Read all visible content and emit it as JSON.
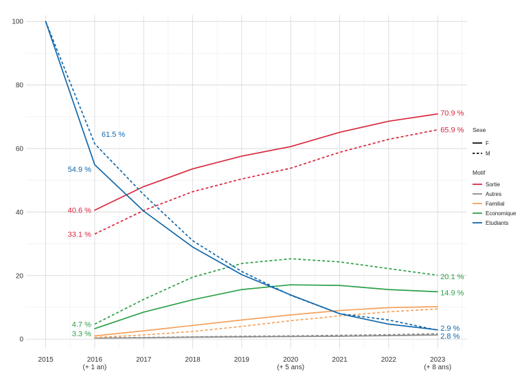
{
  "chart_data": {
    "type": "line",
    "x": [
      2015,
      2016,
      2017,
      2018,
      2019,
      2020,
      2021,
      2022,
      2023
    ],
    "x_tick_labels": [
      {
        "year": 2015,
        "lines": [
          "2015"
        ]
      },
      {
        "year": 2016,
        "lines": [
          "2016",
          "(+ 1 an)"
        ]
      },
      {
        "year": 2017,
        "lines": [
          "2017"
        ]
      },
      {
        "year": 2018,
        "lines": [
          "2018"
        ]
      },
      {
        "year": 2019,
        "lines": [
          "2019"
        ]
      },
      {
        "year": 2020,
        "lines": [
          "2020",
          "(+ 5 ans)"
        ]
      },
      {
        "year": 2021,
        "lines": [
          "2021"
        ]
      },
      {
        "year": 2022,
        "lines": [
          "2022"
        ]
      },
      {
        "year": 2023,
        "lines": [
          "2023",
          "(+ 8 ans)"
        ]
      }
    ],
    "y_ticks": [
      0,
      20,
      40,
      60,
      80,
      100
    ],
    "ylim": [
      -3,
      102
    ],
    "xlim": [
      2014.6,
      2023.6
    ],
    "grid": true,
    "legend_placement": "right",
    "legend": {
      "sexe_title": "Sexe",
      "sexe": [
        {
          "label": "F",
          "dash": "solid"
        },
        {
          "label": "M",
          "dash": "dashed"
        }
      ],
      "motif_title": "Motif",
      "motif": [
        {
          "label": "Sortie",
          "color": "#d7283e"
        },
        {
          "label": "Autres",
          "color": "#8c8c8c"
        },
        {
          "label": "Familial",
          "color": "#f6a15a"
        },
        {
          "label": "Economique",
          "color": "#2ca048"
        },
        {
          "label": "Etudiants",
          "color": "#1067ab"
        }
      ]
    },
    "series": [
      {
        "motif": "Sortie",
        "sexe": "F",
        "color": "#d7283e",
        "x": [
          2016,
          2017,
          2018,
          2019,
          2020,
          2021,
          2022,
          2023
        ],
        "values": [
          40.6,
          48.0,
          53.6,
          57.6,
          60.6,
          65.1,
          68.6,
          70.9
        ]
      },
      {
        "motif": "Sortie",
        "sexe": "M",
        "color": "#d7283e",
        "x": [
          2016,
          2017,
          2018,
          2019,
          2020,
          2021,
          2022,
          2023
        ],
        "values": [
          33.1,
          40.5,
          46.4,
          50.4,
          53.8,
          58.8,
          62.9,
          65.9
        ]
      },
      {
        "motif": "Autres",
        "sexe": "F",
        "color": "#8c8c8c",
        "x": [
          2016,
          2017,
          2018,
          2019,
          2020,
          2021,
          2022,
          2023
        ],
        "values": [
          0.3,
          0.4,
          0.6,
          0.7,
          0.8,
          0.9,
          1.1,
          1.3
        ]
      },
      {
        "motif": "Autres",
        "sexe": "M",
        "color": "#8c8c8c",
        "x": [
          2016,
          2017,
          2018,
          2019,
          2020,
          2021,
          2022,
          2023
        ],
        "values": [
          0.4,
          0.5,
          0.7,
          0.9,
          1.0,
          1.2,
          1.4,
          1.7
        ]
      },
      {
        "motif": "Familial",
        "sexe": "F",
        "color": "#f6a15a",
        "x": [
          2016,
          2017,
          2018,
          2019,
          2020,
          2021,
          2022,
          2023
        ],
        "values": [
          1.0,
          2.6,
          4.3,
          6.0,
          7.6,
          9.0,
          9.9,
          10.2
        ]
      },
      {
        "motif": "Familial",
        "sexe": "M",
        "color": "#f6a15a",
        "x": [
          2016,
          2017,
          2018,
          2019,
          2020,
          2021,
          2022,
          2023
        ],
        "values": [
          0.5,
          1.3,
          2.4,
          4.0,
          5.8,
          7.3,
          8.6,
          9.5
        ]
      },
      {
        "motif": "Economique",
        "sexe": "F",
        "color": "#2ca048",
        "x": [
          2016,
          2017,
          2018,
          2019,
          2020,
          2021,
          2022,
          2023
        ],
        "values": [
          3.3,
          8.5,
          12.4,
          15.6,
          17.1,
          16.9,
          15.6,
          14.9
        ]
      },
      {
        "motif": "Economique",
        "sexe": "M",
        "color": "#2ca048",
        "x": [
          2016,
          2017,
          2018,
          2019,
          2020,
          2021,
          2022,
          2023
        ],
        "values": [
          4.7,
          12.5,
          19.5,
          23.8,
          25.3,
          24.3,
          22.2,
          20.1
        ]
      },
      {
        "motif": "Etudiants",
        "sexe": "F",
        "color": "#1067ab",
        "x": [
          2015,
          2016,
          2017,
          2018,
          2019,
          2020,
          2021,
          2022,
          2023
        ],
        "values": [
          100,
          54.9,
          40.3,
          29.0,
          20.3,
          13.9,
          8.0,
          4.7,
          2.9
        ]
      },
      {
        "motif": "Etudiants",
        "sexe": "M",
        "color": "#1067ab",
        "x": [
          2015,
          2016,
          2017,
          2018,
          2019,
          2020,
          2021,
          2022,
          2023
        ],
        "values": [
          100,
          61.5,
          45.5,
          31.0,
          21.3,
          13.8,
          8.0,
          6.0,
          2.8
        ]
      }
    ],
    "annotations": [
      {
        "text": "40.6 %",
        "x": 2016,
        "y": 40.6,
        "side": "left",
        "color": "#d7283e"
      },
      {
        "text": "33.1 %",
        "x": 2016,
        "y": 33.1,
        "side": "left",
        "color": "#d7283e"
      },
      {
        "text": "4.7 %",
        "x": 2016,
        "y": 4.7,
        "side": "left",
        "color": "#2ca048"
      },
      {
        "text": "3.3 %",
        "x": 2016,
        "y": 1.8,
        "side": "left",
        "color": "#2ca048"
      },
      {
        "text": "54.9 %",
        "x": 2016,
        "y": 53.5,
        "side": "left",
        "color": "#1067ab"
      },
      {
        "text": "61.5 %",
        "x": 2016,
        "y": 64.5,
        "side": "right",
        "color": "#1067ab"
      },
      {
        "text": "70.9 %",
        "x": 2023,
        "y": 71.3,
        "side": "right",
        "color": "#d7283e"
      },
      {
        "text": "65.9 %",
        "x": 2023,
        "y": 66.0,
        "side": "right",
        "color": "#d7283e"
      },
      {
        "text": "20.1 %",
        "x": 2023,
        "y": 19.7,
        "side": "right",
        "color": "#2ca048"
      },
      {
        "text": "14.9 %",
        "x": 2023,
        "y": 14.6,
        "side": "right",
        "color": "#2ca048"
      },
      {
        "text": "2.9 %",
        "x": 2023,
        "y": 3.5,
        "side": "right",
        "color": "#1067ab"
      },
      {
        "text": "2.8 %",
        "x": 2023,
        "y": 1.0,
        "side": "right",
        "color": "#1067ab"
      }
    ]
  }
}
